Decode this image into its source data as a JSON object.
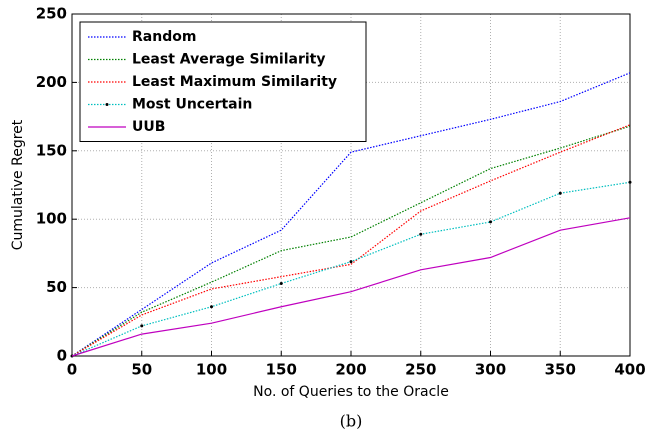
{
  "chart_data": {
    "type": "line",
    "xlabel": "No. of Queries to the Oracle",
    "ylabel": "Cumulative Regret",
    "caption": "(b)",
    "x": [
      0,
      50,
      100,
      150,
      200,
      250,
      300,
      350,
      400
    ],
    "series": [
      {
        "name": "Random",
        "color": "#0000ff",
        "linestyle": "dotted",
        "values": [
          0,
          34,
          68,
          92,
          149,
          161,
          173,
          186,
          207
        ]
      },
      {
        "name": "Least Average Similarity",
        "color": "#008000",
        "linestyle": "dotted",
        "values": [
          0,
          32,
          54,
          77,
          87,
          112,
          137,
          152,
          168
        ]
      },
      {
        "name": "Least Maximum Similarity",
        "color": "#ff0000",
        "linestyle": "dotted",
        "values": [
          0,
          30,
          49,
          58,
          67,
          106,
          128,
          149,
          169
        ]
      },
      {
        "name": "Most Uncertain",
        "color": "#00bfbf",
        "linestyle": "dotted",
        "marker": true,
        "values": [
          0,
          22,
          36,
          53,
          69,
          89,
          98,
          119,
          127
        ]
      },
      {
        "name": "UUB",
        "color": "#bf00bf",
        "linestyle": "solid",
        "values": [
          0,
          16,
          24,
          36,
          47,
          63,
          72,
          92,
          101
        ]
      }
    ],
    "xlim": [
      0,
      400
    ],
    "xticks": [
      0,
      50,
      100,
      150,
      200,
      250,
      300,
      350,
      400
    ],
    "ylim": [
      0,
      250
    ],
    "yticks": [
      0,
      50,
      100,
      150,
      200,
      250
    ],
    "grid": true,
    "legend": "upper left"
  }
}
